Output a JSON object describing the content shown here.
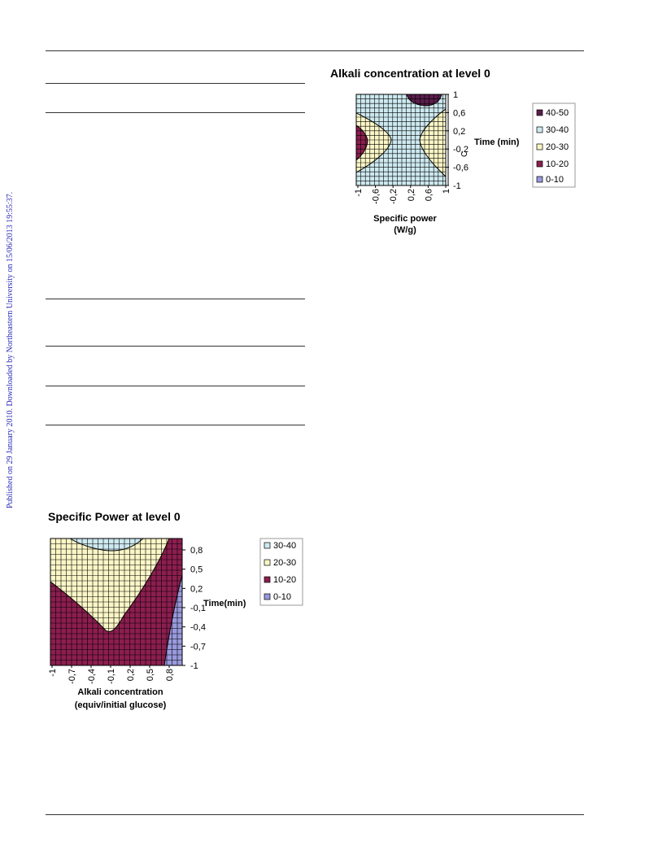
{
  "side_note": "Published on 29 January 2010. Downloaded by Northeastern University on 15/06/2013 19:55:37.",
  "colors": {
    "band_40_50": "#5b1c4c",
    "band_30_40": "#cde9f0",
    "band_20_30": "#fbf6c6",
    "band_10_20": "#8c1e4f",
    "band_0_10": "#9999dd",
    "grid": "#000000"
  },
  "chart_data": [
    {
      "type": "heatmap",
      "title": "Alkali concentration at level 0",
      "xlabel": "Specific power (W/g)",
      "xlabel_lines": [
        "Specific power",
        "(W/g)"
      ],
      "ylabel": "Time (min)",
      "xtick_labels": [
        "-1",
        "-0,6",
        "-0,2",
        "0,2",
        "0,6",
        "1"
      ],
      "ytick_labels": [
        "1",
        "0,6",
        "0,2",
        "-0,2",
        "-0,6",
        "-1"
      ],
      "xlim": [
        -1,
        1
      ],
      "ylim": [
        -1,
        1
      ],
      "grid": true,
      "legend_position": "right",
      "legend": [
        "40-50",
        "30-40",
        "20-30",
        "10-20",
        "0-10"
      ],
      "regions": [
        {
          "range": "40-50",
          "description_points": [
            [
              0.05,
              1.0
            ],
            [
              0.0,
              0.78
            ]
          ]
        },
        {
          "range": "30-40",
          "description_points": [
            [
              -0.7,
              1.0
            ],
            [
              -0.3,
              0.0
            ],
            [
              0.4,
              0.0
            ],
            [
              0.8,
              1.0
            ]
          ]
        },
        {
          "range": "20-30",
          "description_points": [
            [
              -1.0,
              0.7
            ],
            [
              -0.3,
              0.0
            ],
            [
              -1.0,
              -0.7
            ]
          ]
        },
        {
          "range": "10-20",
          "description_points": [
            [
              -1.0,
              0.45
            ],
            [
              -0.8,
              0.0
            ],
            [
              -1.0,
              -0.45
            ]
          ]
        }
      ]
    },
    {
      "type": "heatmap",
      "title": "Specific Power at level 0",
      "xlabel": "Alkali concentration (equiv/initial glucose)",
      "xlabel_lines": [
        "Alkali concentration",
        "(equiv/initial glucose)"
      ],
      "ylabel": "Time(min)",
      "xtick_labels": [
        "-1",
        "-0,7",
        "-0,4",
        "-0,1",
        "0,2",
        "0,5",
        "0,8"
      ],
      "ytick_labels": [
        "0,8",
        "0,5",
        "0,2",
        "-0,1",
        "-0,4",
        "-0,7",
        "-1"
      ],
      "xlim": [
        -1,
        1
      ],
      "ylim": [
        -1,
        1
      ],
      "grid": true,
      "legend_position": "right",
      "legend": [
        "30-40",
        "20-30",
        "10-20",
        "0-10"
      ],
      "regions": [
        {
          "range": "30-40",
          "description_points": [
            [
              -0.6,
              1.0
            ],
            [
              -0.1,
              0.85
            ],
            [
              0.3,
              1.0
            ]
          ]
        },
        {
          "range": "20-30",
          "description_points": [
            [
              -1.0,
              0.4
            ],
            [
              -0.1,
              -0.7
            ],
            [
              0.75,
              1.0
            ]
          ]
        },
        {
          "range": "10-20",
          "description_points": [
            [
              -1.0,
              0.4
            ],
            [
              -1.0,
              -1.0
            ],
            [
              0.75,
              -1.0
            ],
            [
              0.95,
              1.0
            ]
          ]
        },
        {
          "range": "0-10",
          "description_points": [
            [
              0.8,
              -1.0
            ],
            [
              1.0,
              -0.2
            ],
            [
              1.0,
              -1.0
            ]
          ]
        }
      ]
    }
  ]
}
